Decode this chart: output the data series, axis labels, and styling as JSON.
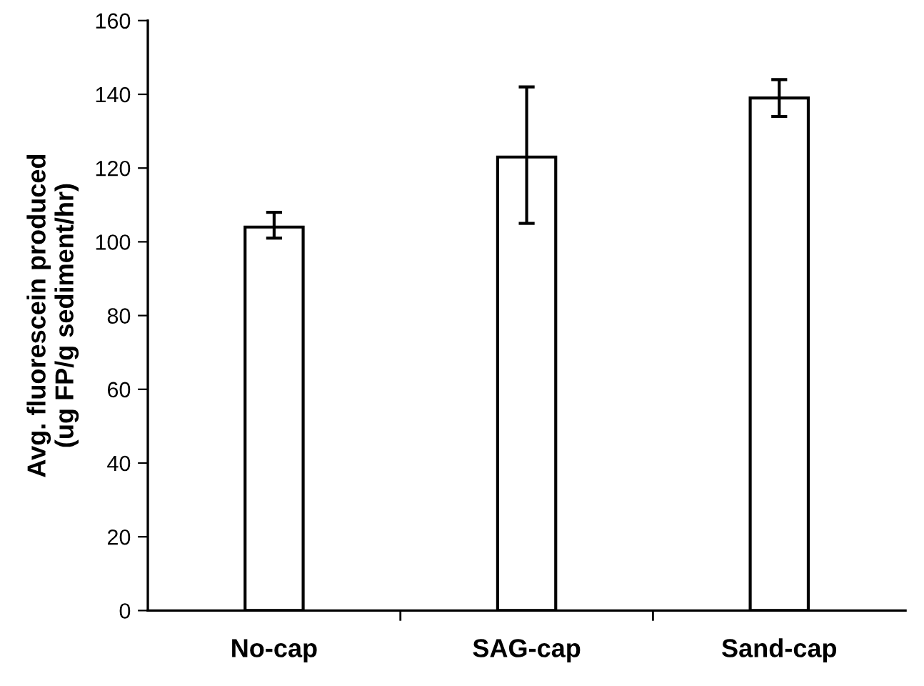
{
  "chart_data": {
    "type": "bar",
    "ylabel": "Avg. fluorescein produced\n(ug FP/g sediment/hr)",
    "categories": [
      "No-cap",
      "SAG-cap",
      "Sand-cap"
    ],
    "values": [
      104,
      123,
      139
    ],
    "errors": [
      [
        101,
        108
      ],
      [
        105,
        142
      ],
      [
        134,
        144
      ]
    ],
    "color": "#ffffff",
    "ylim": [
      0,
      160
    ],
    "yticks": [
      0,
      20,
      40,
      60,
      80,
      100,
      120,
      140,
      160
    ],
    "grid": false,
    "legend": false
  }
}
